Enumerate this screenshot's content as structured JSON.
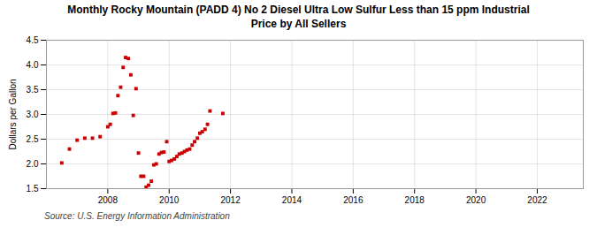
{
  "chart_data": {
    "type": "scatter",
    "title": "Monthly Rocky Mountain (PADD 4) No 2 Diesel Ultra Low Sulfur Less than 15 ppm Industrial\nPrice by All Sellers",
    "ylabel": "Dollars per Gallon",
    "annotation": "Source: U.S. Energy Information Administration",
    "x": [
      2006.5,
      2006.75,
      2007.0,
      2007.25,
      2007.5,
      2007.75,
      2008.0,
      2008.08,
      2008.17,
      2008.25,
      2008.33,
      2008.42,
      2008.5,
      2008.58,
      2008.67,
      2008.75,
      2008.83,
      2008.92,
      2009.0,
      2009.08,
      2009.17,
      2009.25,
      2009.33,
      2009.42,
      2009.5,
      2009.58,
      2009.67,
      2009.75,
      2009.83,
      2009.92,
      2010.0,
      2010.08,
      2010.17,
      2010.25,
      2010.33,
      2010.42,
      2010.5,
      2010.58,
      2010.67,
      2010.75,
      2010.83,
      2010.92,
      2011.0,
      2011.08,
      2011.17,
      2011.25,
      2011.33,
      2011.75
    ],
    "values": [
      2.02,
      2.3,
      2.48,
      2.52,
      2.52,
      2.55,
      2.75,
      2.8,
      3.02,
      3.03,
      3.38,
      3.55,
      3.95,
      4.15,
      4.13,
      3.8,
      2.98,
      3.52,
      2.22,
      1.75,
      1.75,
      1.53,
      1.57,
      1.65,
      1.98,
      2.0,
      2.2,
      2.23,
      2.24,
      2.45,
      2.05,
      2.07,
      2.1,
      2.15,
      2.2,
      2.22,
      2.25,
      2.28,
      2.3,
      2.38,
      2.45,
      2.52,
      2.62,
      2.65,
      2.7,
      2.8,
      3.07,
      3.02
    ],
    "color": "#cc0000",
    "marker": "square",
    "xlim": [
      2006.0,
      2023.5
    ],
    "xticks": [
      2008,
      2010,
      2012,
      2014,
      2016,
      2018,
      2020,
      2022
    ],
    "ylim": [
      1.5,
      4.5
    ],
    "yticks": [
      1.5,
      {
        "value": 2.0,
        "label": "2.0"
      },
      2.5,
      {
        "value": 3.0,
        "label": "3.0"
      },
      3.5,
      {
        "value": 4.0,
        "label": "4.0"
      },
      4.5
    ],
    "grid": true
  }
}
